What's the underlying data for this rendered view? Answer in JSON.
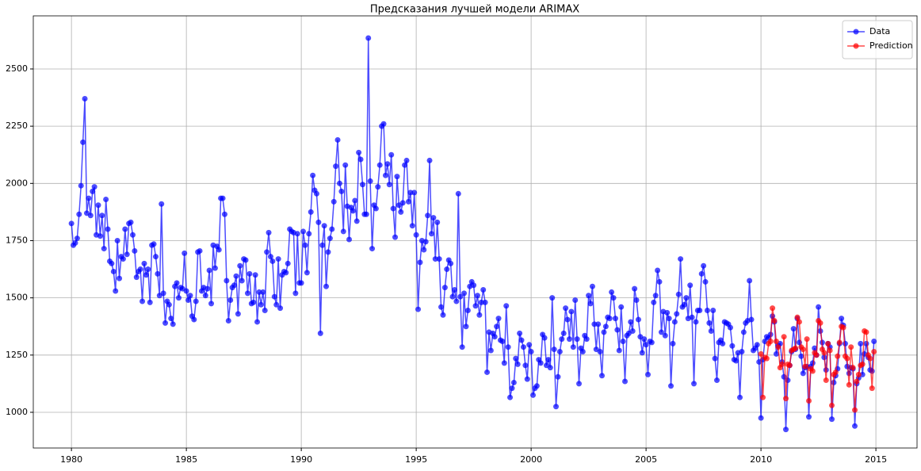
{
  "chart_data": {
    "type": "line",
    "title": "Предсказания лучшей модели ARIMAX",
    "xlim": [
      1978.34,
      2016.79
    ],
    "xticks": [
      1980,
      1985,
      1990,
      1995,
      2000,
      2005,
      2010,
      2015
    ],
    "ylim": [
      844,
      2732
    ],
    "yticks": [
      1000,
      1250,
      1500,
      1750,
      2000,
      2250,
      2500
    ],
    "grid": true,
    "legend": "upper right",
    "series": [
      {
        "name": "Data",
        "color": "#0000ff",
        "x": [
          1980,
          1980.083,
          1980.167,
          1980.25,
          1980.333,
          1980.417,
          1980.5,
          1980.583,
          1980.667,
          1980.75,
          1980.833,
          1980.917,
          1981,
          1981.083,
          1981.167,
          1981.25,
          1981.333,
          1981.417,
          1981.5,
          1981.583,
          1981.667,
          1981.75,
          1981.833,
          1981.917,
          1982,
          1982.083,
          1982.167,
          1982.25,
          1982.333,
          1982.417,
          1982.5,
          1982.583,
          1982.667,
          1982.75,
          1982.833,
          1982.917,
          1983,
          1983.083,
          1983.167,
          1983.25,
          1983.333,
          1983.417,
          1983.5,
          1983.583,
          1983.667,
          1983.75,
          1983.833,
          1983.917,
          1984,
          1984.083,
          1984.167,
          1984.25,
          1984.333,
          1984.417,
          1984.5,
          1984.583,
          1984.667,
          1984.75,
          1984.833,
          1984.917,
          1985,
          1985.083,
          1985.167,
          1985.25,
          1985.333,
          1985.417,
          1985.5,
          1985.583,
          1985.667,
          1985.75,
          1985.833,
          1985.917,
          1986,
          1986.083,
          1986.167,
          1986.25,
          1986.333,
          1986.417,
          1986.5,
          1986.583,
          1986.667,
          1986.75,
          1986.833,
          1986.917,
          1987,
          1987.083,
          1987.167,
          1987.25,
          1987.333,
          1987.417,
          1987.5,
          1987.583,
          1987.667,
          1987.75,
          1987.833,
          1987.917,
          1988,
          1988.083,
          1988.167,
          1988.25,
          1988.333,
          1988.417,
          1988.5,
          1988.583,
          1988.667,
          1988.75,
          1988.833,
          1988.917,
          1989,
          1989.083,
          1989.167,
          1989.25,
          1989.333,
          1989.417,
          1989.5,
          1989.583,
          1989.667,
          1989.75,
          1989.833,
          1989.917,
          1990,
          1990.083,
          1990.167,
          1990.25,
          1990.333,
          1990.417,
          1990.5,
          1990.583,
          1990.667,
          1990.75,
          1990.833,
          1990.917,
          1991,
          1991.083,
          1991.167,
          1991.25,
          1991.333,
          1991.417,
          1991.5,
          1991.583,
          1991.667,
          1991.75,
          1991.833,
          1991.917,
          1992,
          1992.083,
          1992.167,
          1992.25,
          1992.333,
          1992.417,
          1992.5,
          1992.583,
          1992.667,
          1992.75,
          1992.833,
          1992.917,
          1993,
          1993.083,
          1993.167,
          1993.25,
          1993.333,
          1993.417,
          1993.5,
          1993.583,
          1993.667,
          1993.75,
          1993.833,
          1993.917,
          1994,
          1994.083,
          1994.167,
          1994.25,
          1994.333,
          1994.417,
          1994.5,
          1994.583,
          1994.667,
          1994.75,
          1994.833,
          1994.917,
          1995,
          1995.083,
          1995.167,
          1995.25,
          1995.333,
          1995.417,
          1995.5,
          1995.583,
          1995.667,
          1995.75,
          1995.833,
          1995.917,
          1996,
          1996.083,
          1996.167,
          1996.25,
          1996.333,
          1996.417,
          1996.5,
          1996.583,
          1996.667,
          1996.75,
          1996.833,
          1996.917,
          1997,
          1997.083,
          1997.167,
          1997.25,
          1997.333,
          1997.417,
          1997.5,
          1997.583,
          1997.667,
          1997.75,
          1997.833,
          1997.917,
          1998,
          1998.083,
          1998.167,
          1998.25,
          1998.333,
          1998.417,
          1998.5,
          1998.583,
          1998.667,
          1998.75,
          1998.833,
          1998.917,
          1999,
          1999.083,
          1999.167,
          1999.25,
          1999.333,
          1999.417,
          1999.5,
          1999.583,
          1999.667,
          1999.75,
          1999.833,
          1999.917,
          2000,
          2000.083,
          2000.167,
          2000.25,
          2000.333,
          2000.417,
          2000.5,
          2000.583,
          2000.667,
          2000.75,
          2000.833,
          2000.917,
          2001,
          2001.083,
          2001.167,
          2001.25,
          2001.333,
          2001.417,
          2001.5,
          2001.583,
          2001.667,
          2001.75,
          2001.833,
          2001.917,
          2002,
          2002.083,
          2002.167,
          2002.25,
          2002.333,
          2002.417,
          2002.5,
          2002.583,
          2002.667,
          2002.75,
          2002.833,
          2002.917,
          2003,
          2003.083,
          2003.167,
          2003.25,
          2003.333,
          2003.417,
          2003.5,
          2003.583,
          2003.667,
          2003.75,
          2003.833,
          2003.917,
          2004,
          2004.083,
          2004.167,
          2004.25,
          2004.333,
          2004.417,
          2004.5,
          2004.583,
          2004.667,
          2004.75,
          2004.833,
          2004.917,
          2005,
          2005.083,
          2005.167,
          2005.25,
          2005.333,
          2005.417,
          2005.5,
          2005.583,
          2005.667,
          2005.75,
          2005.833,
          2005.917,
          2006,
          2006.083,
          2006.167,
          2006.25,
          2006.333,
          2006.417,
          2006.5,
          2006.583,
          2006.667,
          2006.75,
          2006.833,
          2006.917,
          2007,
          2007.083,
          2007.167,
          2007.25,
          2007.333,
          2007.417,
          2007.5,
          2007.583,
          2007.667,
          2007.75,
          2007.833,
          2007.917,
          2008,
          2008.083,
          2008.167,
          2008.25,
          2008.333,
          2008.417,
          2008.5,
          2008.583,
          2008.667,
          2008.75,
          2008.833,
          2008.917,
          2009,
          2009.083,
          2009.167,
          2009.25,
          2009.333,
          2009.417,
          2009.5,
          2009.583,
          2009.667,
          2009.75,
          2009.833,
          2009.917,
          2010,
          2010.083,
          2010.167,
          2010.25,
          2010.333,
          2010.417,
          2010.5,
          2010.583,
          2010.667,
          2010.75,
          2010.833,
          2010.917,
          2011,
          2011.083,
          2011.167,
          2011.25,
          2011.333,
          2011.417,
          2011.5,
          2011.583,
          2011.667,
          2011.75,
          2011.833,
          2011.917,
          2012,
          2012.083,
          2012.167,
          2012.25,
          2012.333,
          2012.417,
          2012.5,
          2012.583,
          2012.667,
          2012.75,
          2012.833,
          2012.917,
          2013,
          2013.083,
          2013.167,
          2013.25,
          2013.333,
          2013.417,
          2013.5,
          2013.583,
          2013.667,
          2013.75,
          2013.833,
          2013.917,
          2014,
          2014.083,
          2014.167,
          2014.25,
          2014.333,
          2014.417,
          2014.5,
          2014.583,
          2014.667,
          2014.75,
          2014.833,
          2014.917
        ],
        "values": [
          1825,
          1730,
          1740,
          1760,
          1865,
          1990,
          2180,
          2370,
          1870,
          1935,
          1860,
          1965,
          1985,
          1775,
          1905,
          1770,
          1860,
          1715,
          1930,
          1800,
          1660,
          1650,
          1615,
          1530,
          1750,
          1585,
          1680,
          1670,
          1800,
          1690,
          1825,
          1830,
          1775,
          1705,
          1590,
          1615,
          1625,
          1485,
          1650,
          1600,
          1625,
          1480,
          1730,
          1735,
          1680,
          1605,
          1510,
          1910,
          1520,
          1390,
          1485,
          1470,
          1410,
          1385,
          1550,
          1565,
          1500,
          1545,
          1540,
          1695,
          1530,
          1490,
          1510,
          1420,
          1405,
          1485,
          1700,
          1705,
          1530,
          1545,
          1510,
          1540,
          1620,
          1475,
          1730,
          1630,
          1725,
          1710,
          1935,
          1935,
          1865,
          1575,
          1400,
          1490,
          1545,
          1555,
          1595,
          1430,
          1640,
          1575,
          1670,
          1665,
          1520,
          1605,
          1475,
          1480,
          1600,
          1395,
          1525,
          1470,
          1525,
          1445,
          1700,
          1785,
          1680,
          1660,
          1505,
          1470,
          1670,
          1455,
          1600,
          1615,
          1610,
          1650,
          1800,
          1790,
          1785,
          1520,
          1780,
          1565,
          1565,
          1790,
          1730,
          1610,
          1780,
          1875,
          2035,
          1970,
          1955,
          1830,
          1345,
          1730,
          1815,
          1550,
          1700,
          1760,
          1800,
          1920,
          2075,
          2190,
          2000,
          1965,
          1790,
          2080,
          1900,
          1755,
          1895,
          1880,
          1925,
          1835,
          2135,
          2105,
          1995,
          1865,
          1865,
          2635,
          2010,
          1715,
          1905,
          1890,
          1985,
          2080,
          2250,
          2260,
          2035,
          2085,
          1995,
          2125,
          1890,
          1765,
          2030,
          1905,
          1875,
          1915,
          2080,
          2100,
          1920,
          1960,
          1815,
          1960,
          1775,
          1450,
          1655,
          1750,
          1710,
          1745,
          1860,
          2100,
          1780,
          1850,
          1670,
          1830,
          1670,
          1460,
          1425,
          1545,
          1625,
          1665,
          1650,
          1505,
          1535,
          1485,
          1955,
          1505,
          1285,
          1520,
          1375,
          1445,
          1550,
          1570,
          1555,
          1465,
          1510,
          1425,
          1480,
          1535,
          1480,
          1175,
          1350,
          1270,
          1345,
          1330,
          1375,
          1410,
          1315,
          1310,
          1215,
          1465,
          1285,
          1065,
          1105,
          1130,
          1235,
          1210,
          1345,
          1315,
          1285,
          1205,
          1145,
          1295,
          1265,
          1075,
          1105,
          1115,
          1230,
          1215,
          1340,
          1325,
          1205,
          1230,
          1195,
          1500,
          1275,
          1025,
          1155,
          1265,
          1320,
          1345,
          1455,
          1405,
          1320,
          1440,
          1285,
          1490,
          1320,
          1125,
          1280,
          1265,
          1335,
          1320,
          1510,
          1475,
          1550,
          1385,
          1275,
          1385,
          1265,
          1160,
          1350,
          1375,
          1415,
          1410,
          1525,
          1500,
          1410,
          1360,
          1270,
          1460,
          1310,
          1135,
          1335,
          1345,
          1395,
          1355,
          1540,
          1490,
          1405,
          1330,
          1260,
          1320,
          1295,
          1165,
          1310,
          1305,
          1480,
          1510,
          1620,
          1570,
          1350,
          1440,
          1335,
          1435,
          1410,
          1115,
          1300,
          1395,
          1430,
          1515,
          1670,
          1460,
          1470,
          1500,
          1410,
          1555,
          1415,
          1125,
          1395,
          1445,
          1445,
          1605,
          1640,
          1570,
          1445,
          1390,
          1355,
          1445,
          1235,
          1140,
          1305,
          1315,
          1300,
          1395,
          1390,
          1385,
          1370,
          1290,
          1230,
          1225,
          1260,
          1065,
          1265,
          1350,
          1390,
          1400,
          1575,
          1405,
          1270,
          1280,
          1295,
          1220,
          975,
          1230,
          1310,
          1330,
          1325,
          1340,
          1420,
          1395,
          1255,
          1290,
          1300,
          1220,
          1155,
          925,
          1140,
          1205,
          1265,
          1365,
          1275,
          1410,
          1305,
          1245,
          1170,
          1195,
          1200,
          980,
          1200,
          1215,
          1280,
          1250,
          1460,
          1355,
          1305,
          1240,
          1185,
          1300,
          1285,
          970,
          1130,
          1160,
          1190,
          1300,
          1410,
          1380,
          1300,
          1200,
          1170,
          1195,
          1190,
          940,
          1125,
          1150,
          1300,
          1165,
          1255,
          1300,
          1240,
          1185,
          1180,
          1310
        ]
      },
      {
        "name": "Prediction",
        "color": "#ff0000",
        "x": [
          2010,
          2010.083,
          2010.167,
          2010.25,
          2010.333,
          2010.417,
          2010.5,
          2010.583,
          2010.667,
          2010.75,
          2010.833,
          2010.917,
          2011,
          2011.083,
          2011.167,
          2011.25,
          2011.333,
          2011.417,
          2011.5,
          2011.583,
          2011.667,
          2011.75,
          2011.833,
          2011.917,
          2012,
          2012.083,
          2012.167,
          2012.25,
          2012.333,
          2012.417,
          2012.5,
          2012.583,
          2012.667,
          2012.75,
          2012.833,
          2012.917,
          2013,
          2013.083,
          2013.167,
          2013.25,
          2013.333,
          2013.417,
          2013.5,
          2013.583,
          2013.667,
          2013.75,
          2013.833,
          2013.917,
          2014,
          2014.083,
          2014.167,
          2014.25,
          2014.333,
          2014.417,
          2014.5,
          2014.583,
          2014.667,
          2014.75,
          2014.833,
          2014.917
        ],
        "values": [
          1255,
          1065,
          1240,
          1235,
          1300,
          1310,
          1455,
          1400,
          1310,
          1285,
          1195,
          1210,
          1330,
          1060,
          1210,
          1205,
          1270,
          1275,
          1280,
          1415,
          1395,
          1285,
          1275,
          1200,
          1320,
          1050,
          1190,
          1180,
          1260,
          1250,
          1400,
          1390,
          1275,
          1260,
          1140,
          1300,
          1270,
          1030,
          1165,
          1175,
          1245,
          1305,
          1375,
          1370,
          1245,
          1235,
          1120,
          1285,
          1195,
          1010,
          1135,
          1165,
          1205,
          1210,
          1355,
          1350,
          1250,
          1235,
          1105,
          1265
        ]
      }
    ]
  }
}
